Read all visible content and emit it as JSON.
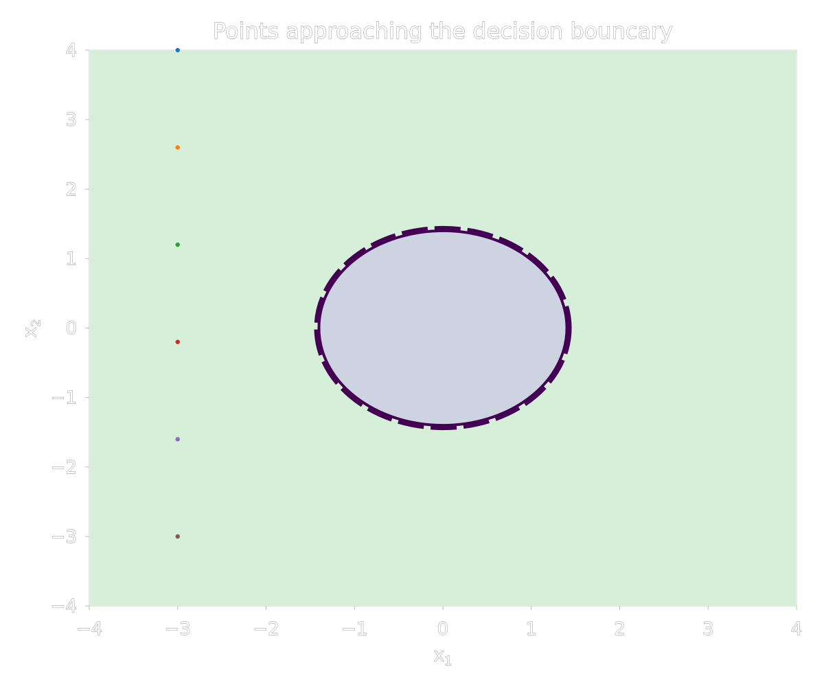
{
  "chart_data": {
    "type": "scatter",
    "title": "Points approaching the decision bouncary",
    "xlabel": "x",
    "xlabel_sub": "1",
    "ylabel": "x",
    "ylabel_sub": "2",
    "xlim": [
      -4,
      4
    ],
    "ylim": [
      -4,
      4
    ],
    "xticks": [
      -4,
      -3,
      -2,
      -1,
      0,
      1,
      2,
      3,
      4
    ],
    "yticks": [
      -4,
      -3,
      -2,
      -1,
      0,
      1,
      2,
      3,
      4
    ],
    "xtick_labels": [
      "−4",
      "−3",
      "−2",
      "−1",
      "0",
      "1",
      "2",
      "3",
      "4"
    ],
    "ytick_labels": [
      "−4",
      "−3",
      "−2",
      "−1",
      "0",
      "1",
      "2",
      "3",
      "4"
    ],
    "grid": false,
    "region": {
      "outside_color": "#d6efd8",
      "inside_color": "#cdd3e0",
      "boundary_color": "#440154",
      "boundary": {
        "shape": "circle",
        "center": [
          0,
          0
        ],
        "radius": 1.41
      }
    },
    "points": [
      {
        "x": -3,
        "y": 4.0,
        "color": "#1f77b4"
      },
      {
        "x": -3,
        "y": 2.6,
        "color": "#ff7f0e"
      },
      {
        "x": -3,
        "y": 1.2,
        "color": "#2ca02c"
      },
      {
        "x": -3,
        "y": -0.2,
        "color": "#d62728"
      },
      {
        "x": -3,
        "y": -1.6,
        "color": "#9467bd"
      },
      {
        "x": -3,
        "y": -3.0,
        "color": "#8c564b"
      }
    ]
  }
}
